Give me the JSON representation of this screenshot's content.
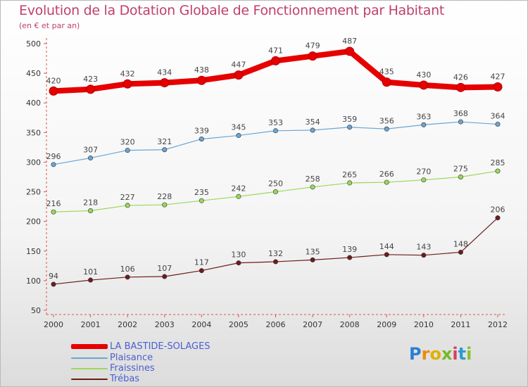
{
  "header": {
    "title": "Evolution de la Dotation Globale de Fonctionnement par Habitant",
    "subtitle": "(en € et par an)"
  },
  "brand": {
    "text": "Proxiti"
  },
  "chart_data": {
    "type": "line",
    "title": "Evolution de la Dotation Globale de Fonctionnement par Habitant",
    "subtitle": "(en € et par an)",
    "xlabel": "",
    "ylabel": "",
    "ylim": [
      50,
      500
    ],
    "yticks": [
      50,
      100,
      150,
      200,
      250,
      300,
      350,
      400,
      450,
      500
    ],
    "grid": false,
    "legend_position": "bottom-left",
    "x": [
      "2000",
      "2001",
      "2002",
      "2003",
      "2004",
      "2005",
      "2006",
      "2007",
      "2008",
      "2009",
      "2010",
      "2011",
      "2012"
    ],
    "series": [
      {
        "name": "LA BASTIDE-SOLAGES",
        "color": "#e60000",
        "values": [
          420,
          423,
          432,
          434,
          438,
          447,
          471,
          479,
          487,
          435,
          430,
          426,
          427
        ]
      },
      {
        "name": "Plaisance",
        "color": "#6aa6d6",
        "values": [
          296,
          307,
          320,
          321,
          339,
          345,
          353,
          354,
          359,
          356,
          363,
          368,
          364
        ]
      },
      {
        "name": "Fraissines",
        "color": "#9ad85a",
        "values": [
          216,
          218,
          227,
          228,
          235,
          242,
          250,
          258,
          265,
          266,
          270,
          275,
          285
        ]
      },
      {
        "name": "Trébas",
        "color": "#6e1c1c",
        "values": [
          94,
          101,
          106,
          107,
          117,
          130,
          132,
          135,
          139,
          144,
          143,
          148,
          206
        ]
      }
    ]
  }
}
